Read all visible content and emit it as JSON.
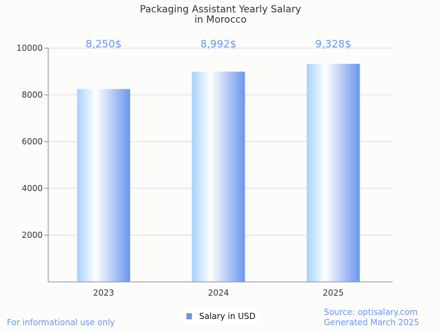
{
  "chart_data": {
    "type": "bar",
    "title_lines": [
      "Packaging Assistant Yearly Salary",
      "in Morocco"
    ],
    "categories": [
      "2023",
      "2024",
      "2025"
    ],
    "values": [
      8250,
      8992,
      9328
    ],
    "data_labels": [
      "8,250$",
      "8,992$",
      "9,328$"
    ],
    "yticks": [
      "2000",
      "4000",
      "6000",
      "8000",
      "10000"
    ],
    "ytick_values": [
      2000,
      4000,
      6000,
      8000,
      10000
    ],
    "ylim": [
      0,
      10000
    ],
    "xlabel": "",
    "ylabel": "",
    "grid": true,
    "legend": {
      "label": "Salary in USD",
      "placement": "bottom-center",
      "color": "#6a9be8"
    },
    "colors": {
      "bar_light": "#a6d2ff",
      "bar_dark": "#6b96ee",
      "label": "#6b96ee"
    }
  },
  "footer": {
    "left": "For informational use only",
    "source": "Source: optisalary.com",
    "generated": "Generated March 2025"
  }
}
